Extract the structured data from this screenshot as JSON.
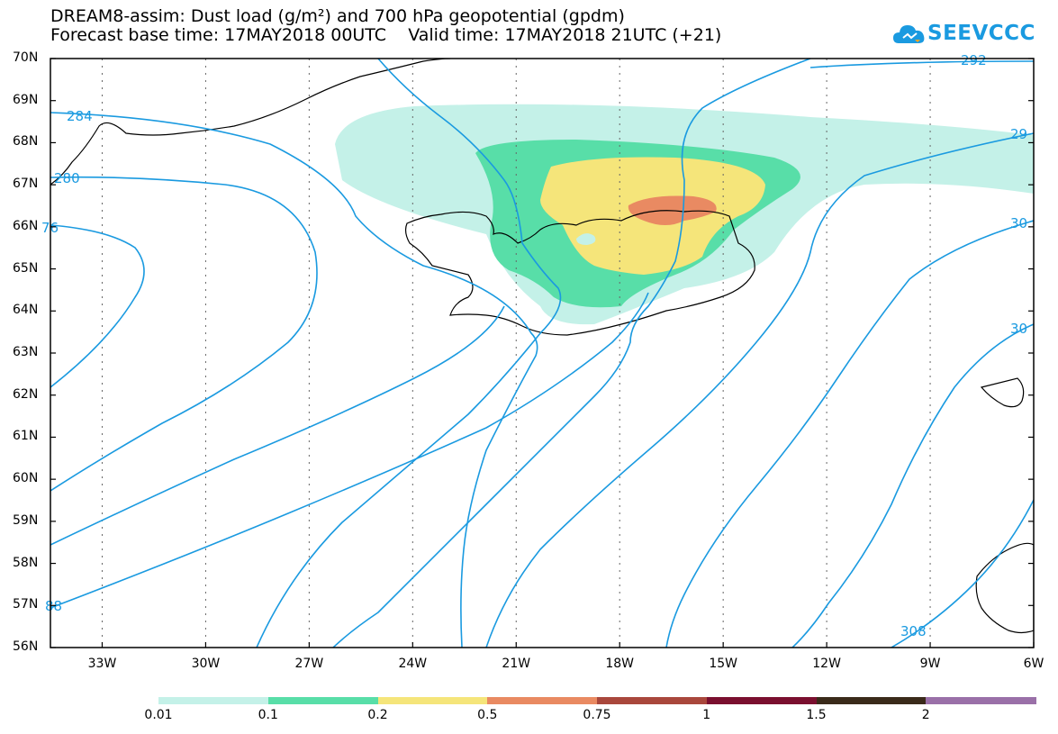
{
  "title": {
    "line1": "DREAM8-assim: Dust load (g/m²) and 700 hPa geopotential (gpdm)",
    "line2": "Forecast base time: 17MAY2018 00UTC    Valid time: 17MAY2018 21UTC (+21)"
  },
  "logo": {
    "text": "SEEVCCC",
    "icon": "cloud-logo-icon",
    "color": "#1a9ae0"
  },
  "axes": {
    "lat_labels": [
      "70N",
      "69N",
      "68N",
      "67N",
      "66N",
      "65N",
      "64N",
      "63N",
      "62N",
      "61N",
      "60N",
      "59N",
      "58N",
      "57N",
      "56N"
    ],
    "lon_labels": [
      "33W",
      "30W",
      "27W",
      "24W",
      "21W",
      "18W",
      "15W",
      "12W",
      "9W",
      "6W"
    ],
    "lat_range": [
      56,
      70
    ],
    "lon_range": [
      -34.5,
      -6
    ],
    "grid": true
  },
  "contours": {
    "color": "#1a9ae0",
    "labels": [
      "292",
      "284",
      "280",
      "76",
      "29",
      "30",
      "30",
      "88",
      "308"
    ]
  },
  "colorbar": {
    "colors": [
      "#c4f1e8",
      "#58dea8",
      "#f5e57a",
      "#e98a62",
      "#a9473c",
      "#7a0f2f",
      "#3a2a1a",
      "#9a70a8"
    ],
    "labels": [
      "0.01",
      "0.1",
      "0.2",
      "0.5",
      "0.75",
      "1",
      "1.5",
      "2"
    ]
  }
}
